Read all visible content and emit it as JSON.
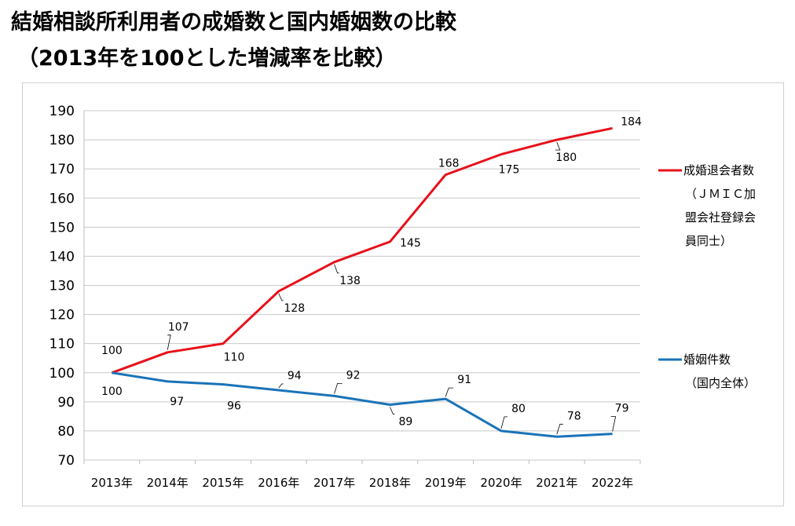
{
  "title_line1": "結婚相談所利用者の成婚数と国内婚姻数の比較",
  "title_line2": "（2013年を100とした増減率を比較）",
  "chart_data": {
    "type": "line",
    "title": "",
    "xlabel": "",
    "ylabel": "",
    "categories": [
      "2013年",
      "2014年",
      "2015年",
      "2016年",
      "2017年",
      "2018年",
      "2019年",
      "2020年",
      "2021年",
      "2022年"
    ],
    "ylim": [
      70,
      190
    ],
    "yticks": [
      70,
      80,
      90,
      100,
      110,
      120,
      130,
      140,
      150,
      160,
      170,
      180,
      190
    ],
    "grid": true,
    "legend_position": "right",
    "series": [
      {
        "name": "成婚退会者数",
        "legend_lines": [
          "成婚退会者数",
          "（ＪＭＩＣ加",
          "盟会社登録会",
          "員同士）"
        ],
        "color": "#e8101a",
        "values": [
          100,
          107,
          110,
          128,
          138,
          145,
          168,
          175,
          180,
          184
        ],
        "labels": [
          "100",
          "107",
          "110",
          "128",
          "138",
          "145",
          "168",
          "175",
          "180",
          "184"
        ]
      },
      {
        "name": "婚姻件数",
        "legend_lines": [
          "婚姻件数",
          "（国内全体）"
        ],
        "color": "#1a73b8",
        "values": [
          100,
          97,
          96,
          94,
          92,
          89,
          91,
          80,
          78,
          79
        ],
        "labels": [
          "100",
          "97",
          "96",
          "94",
          "92",
          "89",
          "91",
          "80",
          "78",
          "79"
        ]
      }
    ]
  }
}
